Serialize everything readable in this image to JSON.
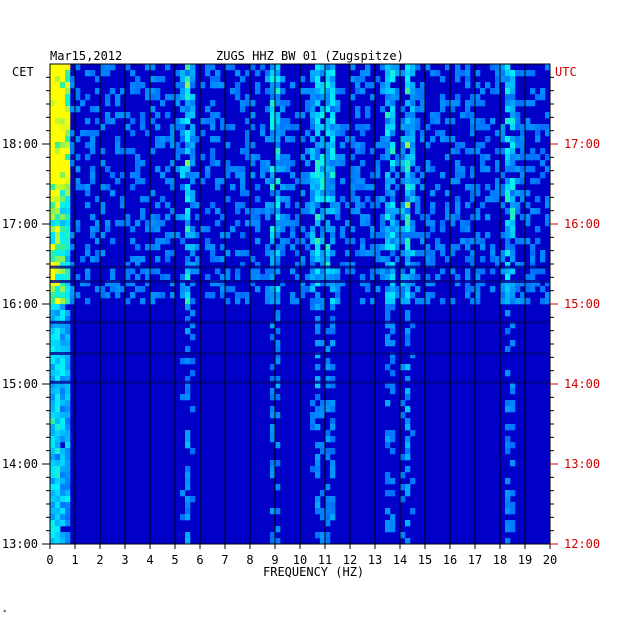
{
  "chart_data": {
    "type": "heatmap",
    "title": "ZUGS HHZ BW 01 (Zugspitze)",
    "date": "Mar15,2012",
    "xlabel": "FREQUENCY (HZ)",
    "left_axis_label": "CET",
    "right_axis_label": "UTC",
    "x_range": [
      0,
      20
    ],
    "x_ticks": [
      "0",
      "1",
      "2",
      "3",
      "4",
      "5",
      "6",
      "7",
      "8",
      "9",
      "10",
      "11",
      "12",
      "13",
      "14",
      "15",
      "16",
      "17",
      "18",
      "19",
      "20"
    ],
    "cet_range": [
      "13:00",
      "19:00"
    ],
    "cet_ticks": [
      "13:00",
      "14:00",
      "15:00",
      "16:00",
      "17:00",
      "18:00"
    ],
    "utc_ticks": [
      "12:00",
      "13:00",
      "14:00",
      "15:00",
      "16:00",
      "17:00"
    ],
    "colors": {
      "background": "#0000c8",
      "grid": "#000000",
      "utc": "#d00000",
      "low": "#0000c8",
      "mid": "#00e0ff",
      "high": "#ffff00"
    },
    "bright_bands_hz": [
      0.2,
      5.5,
      9.0,
      10.7,
      11.2,
      13.6,
      14.3,
      18.4
    ],
    "footer_mark": "*"
  }
}
